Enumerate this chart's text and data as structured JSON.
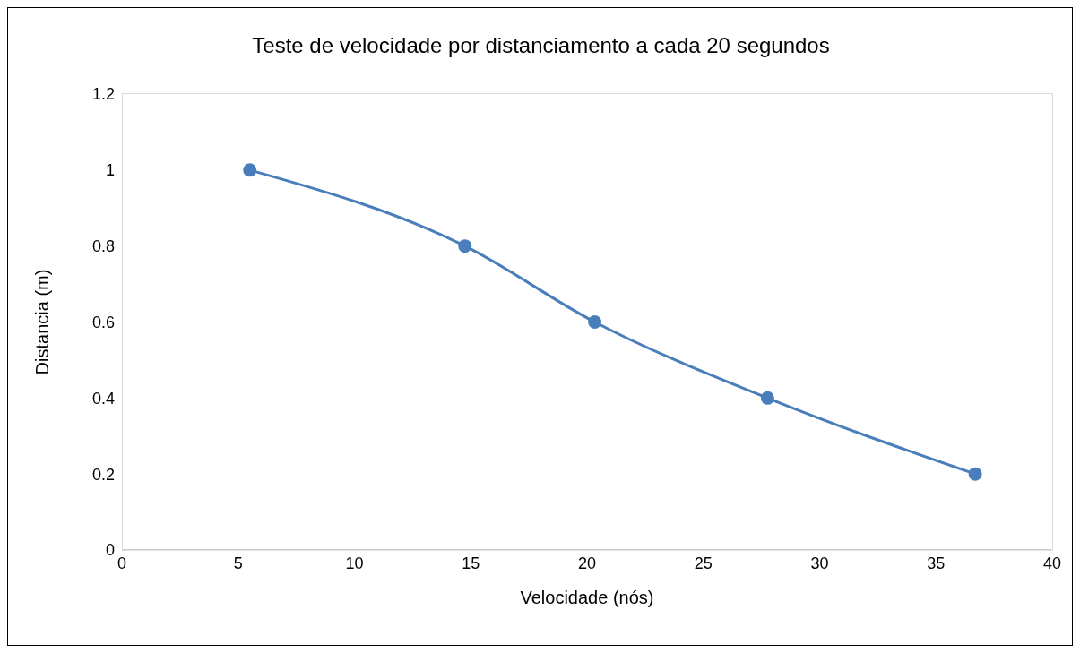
{
  "chart_data": {
    "type": "line",
    "title": "Teste de velocidade por distanciamento a cada 20 segundos",
    "xlabel": "Velocidade (nós)",
    "ylabel": "Distancia (m)",
    "x": [
      5.5,
      14.75,
      20.33,
      27.76,
      36.69
    ],
    "series": [
      {
        "color": "#4a7ebb",
        "values": [
          1,
          0.8,
          0.6,
          0.4,
          0.2
        ]
      }
    ],
    "xlim": [
      0,
      40
    ],
    "xticks": [
      0,
      5,
      10,
      15,
      20,
      25,
      30,
      35,
      40
    ],
    "ylim": [
      0,
      1.2
    ],
    "yticks": [
      0,
      0.2,
      0.4,
      0.6,
      0.8,
      1,
      1.2
    ],
    "grid": false,
    "legend": false,
    "marker": "circle",
    "line_style": "solid"
  }
}
